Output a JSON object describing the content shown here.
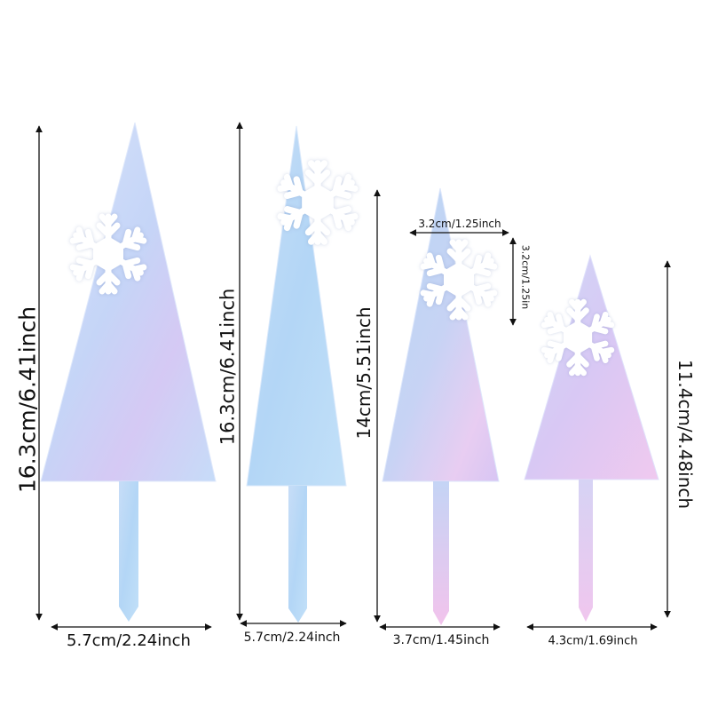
{
  "toppers": [
    {
      "height_label": "16.3cm/6.41inch",
      "width_label": "5.7cm/2.24inch"
    },
    {
      "height_label": "16.3cm/6.41inch",
      "width_label": "5.7cm/2.24inch"
    },
    {
      "height_label": "14cm/5.51inch",
      "width_label": "3.7cm/1.45inch"
    },
    {
      "height_label": "11.4cm/4.48inch",
      "width_label": "4.3cm/1.69inch"
    }
  ],
  "snowflake": {
    "width_label": "3.2cm/1.25inch",
    "height_label": "3.2cm/1.25in"
  },
  "colors": {
    "iridescent_blue": "#b9d6f7",
    "iridescent_pink": "#f1c6ee",
    "iridescent_lilac": "#d9c7f5",
    "snowflake": "#ffffff",
    "dimension_line": "#111111"
  }
}
